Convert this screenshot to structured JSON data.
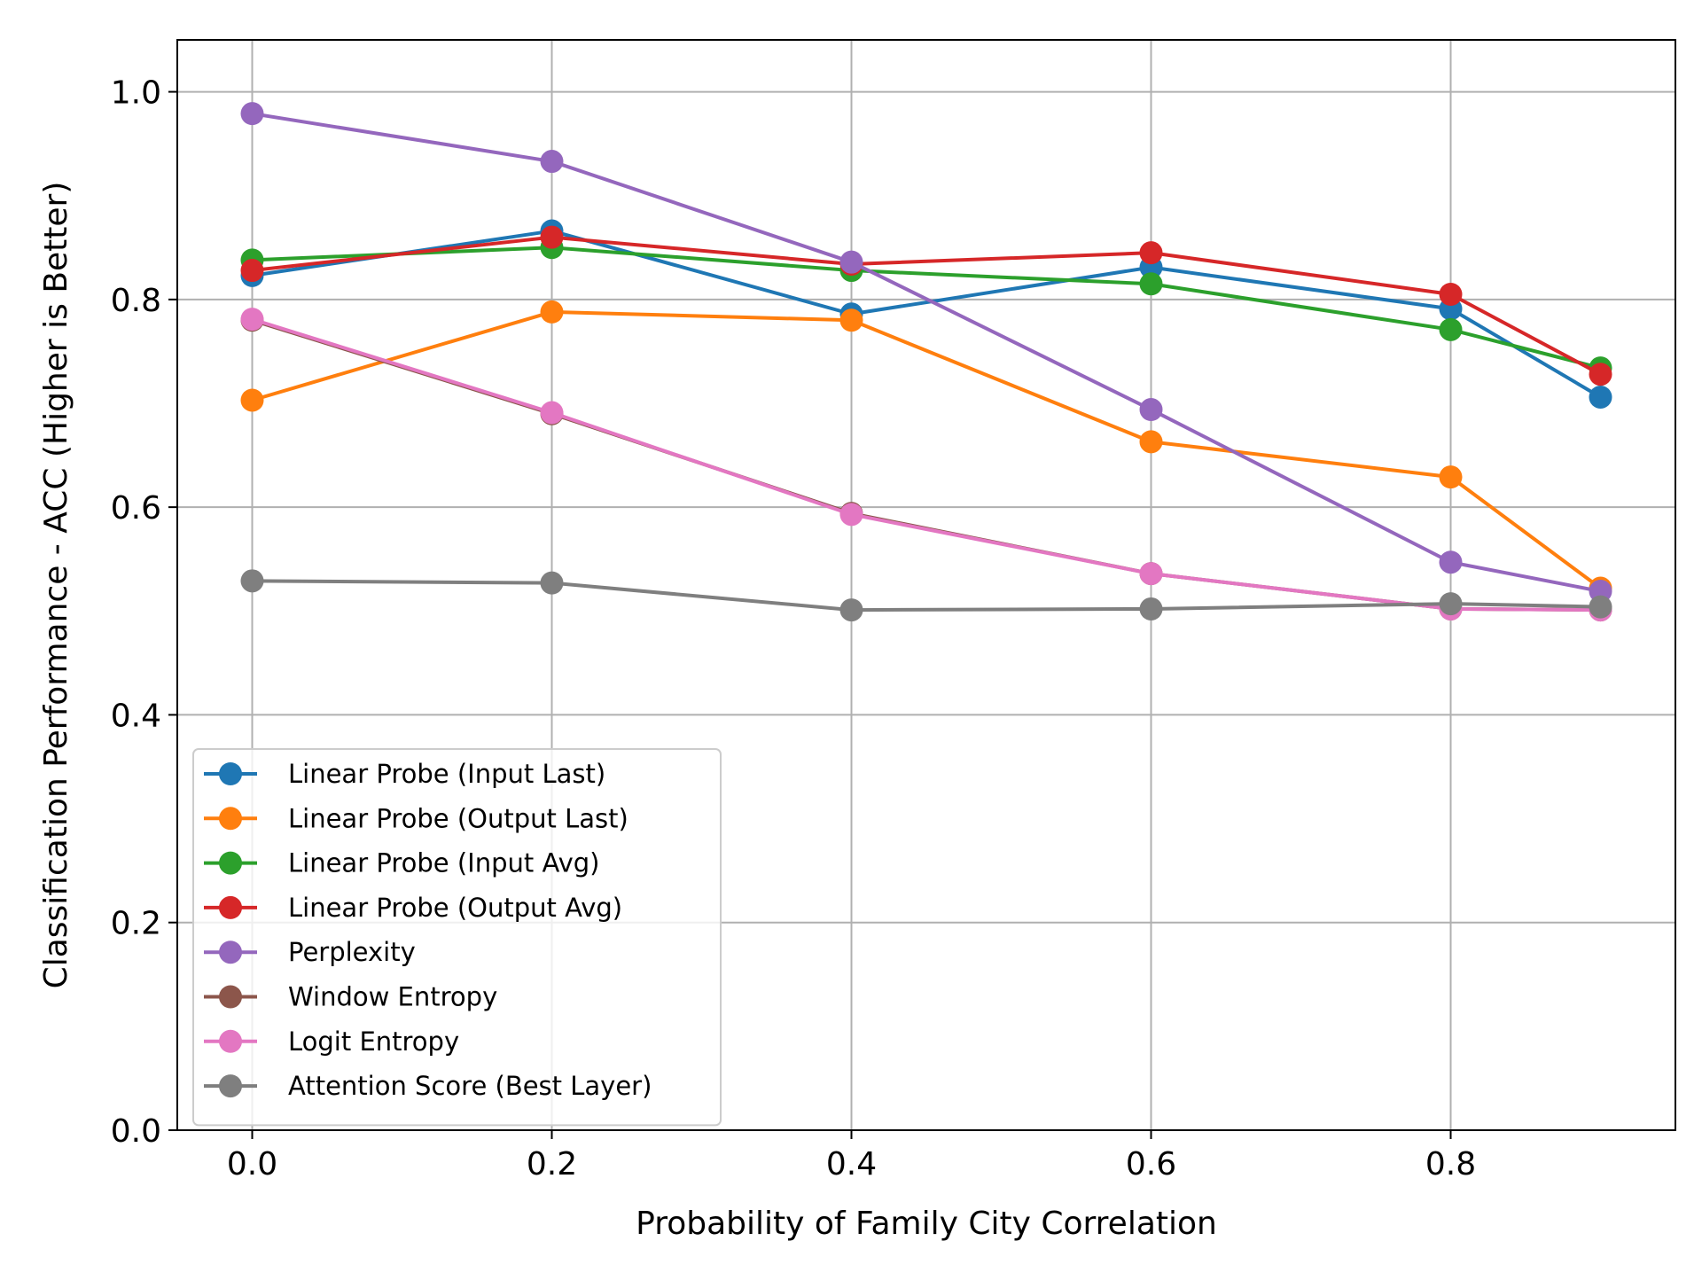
{
  "chart_data": {
    "type": "line",
    "title": "",
    "xlabel": "Probability of Family City Correlation",
    "ylabel": "Classification Performance - ACC (Higher is Better)",
    "x": [
      0.0,
      0.2,
      0.4,
      0.6,
      0.8,
      0.9
    ],
    "xlim": [
      -0.05,
      0.95
    ],
    "ylim": [
      0.0,
      1.05
    ],
    "xticks": [
      0.0,
      0.2,
      0.4,
      0.6,
      0.8
    ],
    "xtick_labels": [
      "0.0",
      "0.2",
      "0.4",
      "0.6",
      "0.8"
    ],
    "yticks": [
      0.0,
      0.2,
      0.4,
      0.6,
      0.8,
      1.0
    ],
    "ytick_labels": [
      "0.0",
      "0.2",
      "0.4",
      "0.6",
      "0.8",
      "1.0"
    ],
    "grid": true,
    "legend_position": "lower-left",
    "series": [
      {
        "name": "Linear Probe (Input Last)",
        "color": "#1f77b4",
        "values": [
          0.823,
          0.866,
          0.786,
          0.831,
          0.791,
          0.706
        ]
      },
      {
        "name": "Linear Probe (Output Last)",
        "color": "#ff7f0e",
        "values": [
          0.703,
          0.788,
          0.78,
          0.663,
          0.629,
          0.522
        ]
      },
      {
        "name": "Linear Probe (Input Avg)",
        "color": "#2ca02c",
        "values": [
          0.838,
          0.85,
          0.828,
          0.815,
          0.771,
          0.734
        ]
      },
      {
        "name": "Linear Probe (Output Avg)",
        "color": "#d62728",
        "values": [
          0.828,
          0.86,
          0.834,
          0.845,
          0.805,
          0.728
        ]
      },
      {
        "name": "Perplexity",
        "color": "#9467bd",
        "values": [
          0.979,
          0.933,
          0.836,
          0.694,
          0.547,
          0.519
        ]
      },
      {
        "name": "Window Entropy",
        "color": "#8c564b",
        "values": [
          0.78,
          0.69,
          0.594,
          0.536,
          0.502,
          0.501
        ]
      },
      {
        "name": "Logit Entropy",
        "color": "#e377c2",
        "values": [
          0.781,
          0.691,
          0.593,
          0.536,
          0.502,
          0.501
        ]
      },
      {
        "name": "Attention Score (Best Layer)",
        "color": "#7f7f7f",
        "values": [
          0.529,
          0.527,
          0.501,
          0.502,
          0.507,
          0.504
        ]
      }
    ]
  }
}
